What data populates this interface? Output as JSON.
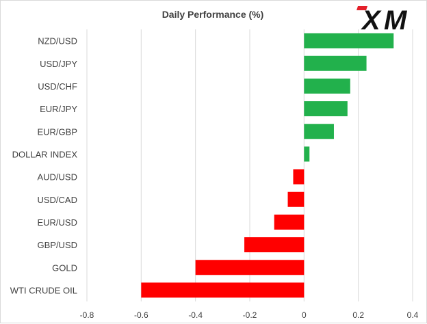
{
  "chart_data": {
    "type": "bar",
    "orientation": "horizontal",
    "title": "Daily Performance  (%)",
    "categories": [
      "NZD/USD",
      "USD/JPY",
      "USD/CHF",
      "EUR/JPY",
      "EUR/GBP",
      "DOLLAR INDEX",
      "AUD/USD",
      "USD/CAD",
      "EUR/USD",
      "GBP/USD",
      "GOLD",
      "WTI CRUDE OIL"
    ],
    "values": [
      0.33,
      0.23,
      0.17,
      0.16,
      0.11,
      0.02,
      -0.04,
      -0.06,
      -0.11,
      -0.22,
      -0.4,
      -0.6
    ],
    "xlim": [
      -0.8,
      0.4
    ],
    "xticks": [
      "-0.8",
      "-0.6",
      "-0.4",
      "-0.2",
      "0",
      "0.2",
      "0.4"
    ],
    "xtick_values": [
      -0.8,
      -0.6,
      -0.4,
      -0.2,
      0,
      0.2,
      0.4
    ],
    "grid": "vertical",
    "colors": {
      "positive": "#22b14c",
      "negative": "#ff0000",
      "grid": "#d9d9d9"
    }
  },
  "logo": {
    "text": "XM",
    "x_color": "#e4202a",
    "m_color": "#111111"
  }
}
